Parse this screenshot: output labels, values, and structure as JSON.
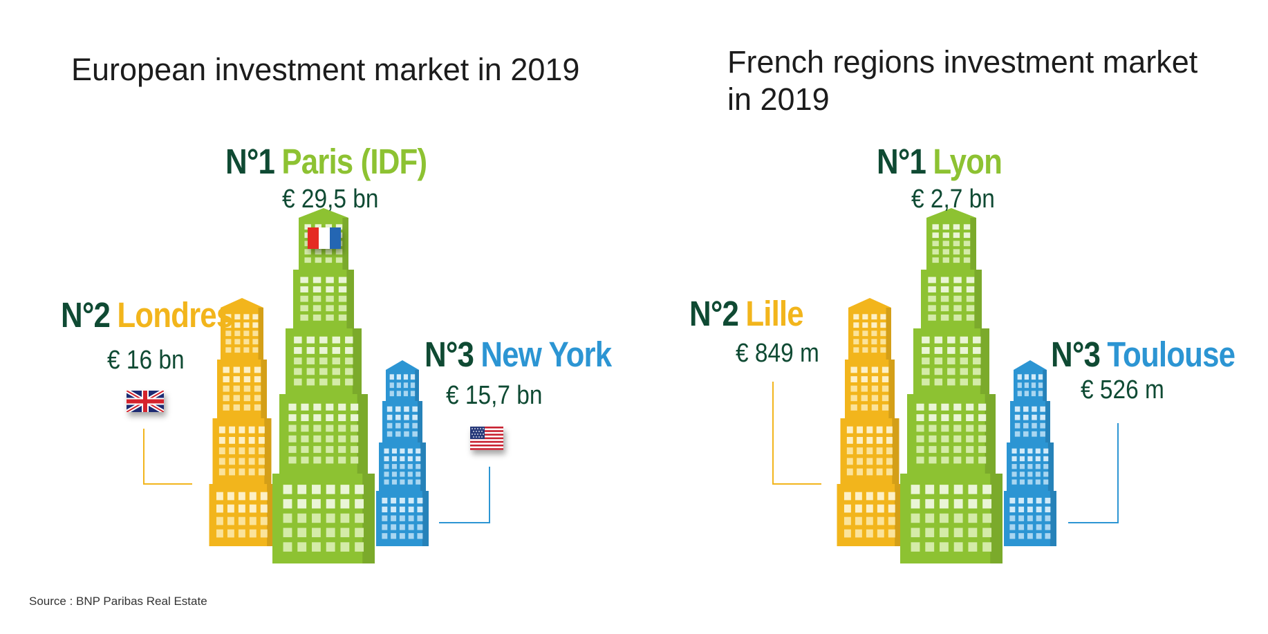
{
  "left_panel": {
    "title": "European investment market in 2019",
    "first": {
      "rank": "N°1",
      "city": "Paris (IDF)",
      "amount": "€ 29,5 bn"
    },
    "second": {
      "rank": "N°2",
      "city": "Londres",
      "amount": "€ 16 bn"
    },
    "third": {
      "rank": "N°3",
      "city": "New York",
      "amount": "€ 15,7 bn"
    },
    "flags": [
      "france-flag",
      "uk-flag",
      "usa-flag"
    ]
  },
  "right_panel": {
    "title_line1": "French regions investment market",
    "title_line2": "in 2019",
    "first": {
      "rank": "N°1",
      "city": "Lyon",
      "amount": "€ 2,7 bn"
    },
    "second": {
      "rank": "N°2",
      "city": "Lille",
      "amount": "€ 849 m"
    },
    "third": {
      "rank": "N°3",
      "city": "Toulouse",
      "amount": "€ 526 m"
    }
  },
  "source": "Source : BNP Paribas Real Estate",
  "colors": {
    "rank_dark_green": "#0f4a33",
    "first_green": "#8dc232",
    "second_yellow": "#f2b51c",
    "third_blue": "#2c95d3"
  }
}
